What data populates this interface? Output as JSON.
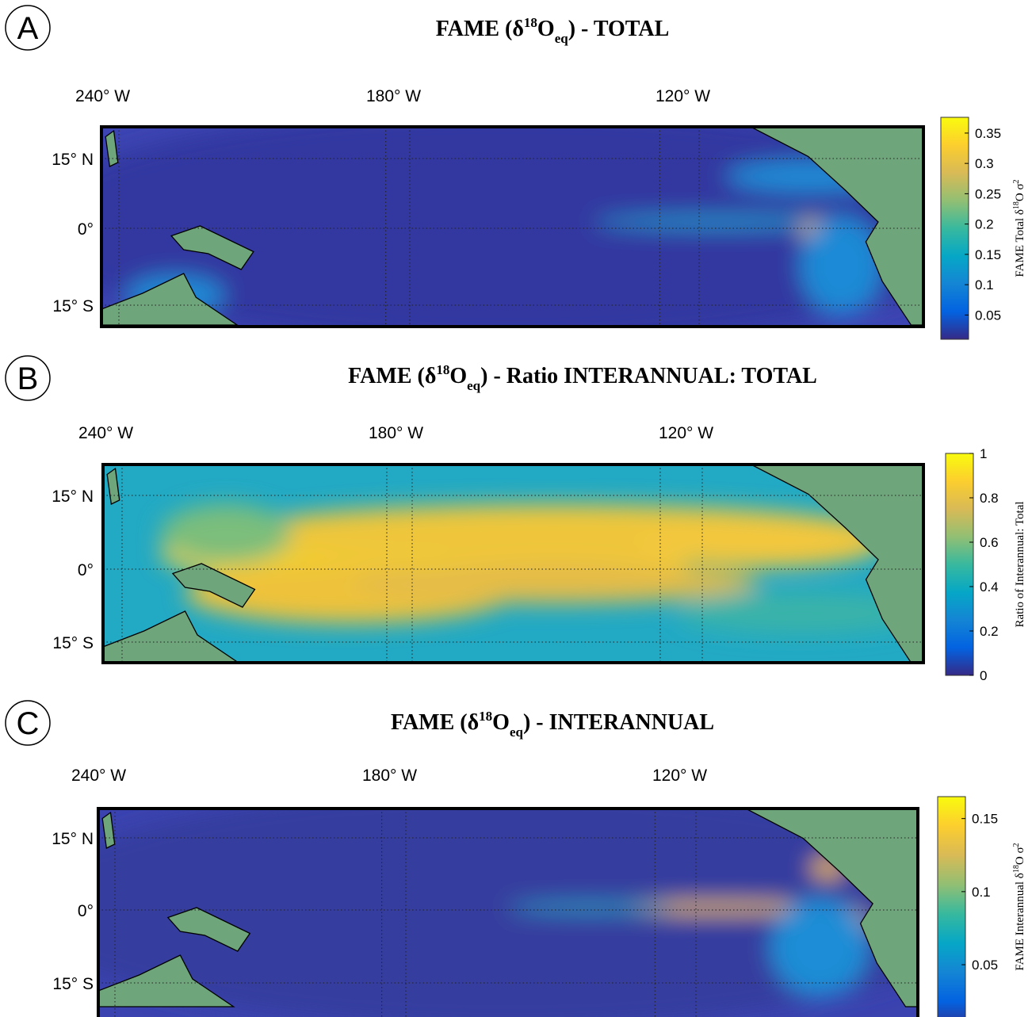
{
  "panels": [
    {
      "letter": "A",
      "title": {
        "prefix": "FAME (δ",
        "sup": "18",
        "mid": "O",
        "sub": "eq",
        "suffix": ") - TOTAL"
      },
      "lon_labels": [
        "240° W",
        "180° W",
        "120° W"
      ],
      "lat_labels": [
        "15° N",
        "0°",
        "15° S"
      ],
      "colorbar": {
        "lim": [
          0.01,
          0.376
        ],
        "ticks": [
          0.05,
          0.1,
          0.15,
          0.2,
          0.25,
          0.3,
          0.35
        ],
        "label": {
          "prefix": "FAME Total δ",
          "sup": "18",
          "mid": "O σ",
          "sup2": "2"
        }
      }
    },
    {
      "letter": "B",
      "title": {
        "prefix": "FAME (δ",
        "sup": "18",
        "mid": "O",
        "sub": "eq",
        "suffix": ") - Ratio INTERANNUAL: TOTAL"
      },
      "lon_labels": [
        "240° W",
        "180° W",
        "120° W"
      ],
      "lat_labels": [
        "15° N",
        "0°",
        "15° S"
      ],
      "colorbar": {
        "lim": [
          0,
          1
        ],
        "ticks": [
          0,
          0.2,
          0.4,
          0.6,
          0.8,
          1
        ],
        "label": {
          "prefix": "Ratio of Interannual: Total"
        }
      }
    },
    {
      "letter": "C",
      "title": {
        "prefix": "FAME (δ",
        "sup": "18",
        "mid": "O",
        "sub": "eq",
        "suffix": ") - INTERANNUAL"
      },
      "lon_labels": [
        "240° W",
        "180° W",
        "120° W"
      ],
      "lat_labels": [
        "15° N",
        "0°",
        "15° S"
      ],
      "colorbar": {
        "lim": [
          0.005,
          0.165
        ],
        "ticks": [
          0.05,
          0.1,
          0.15
        ],
        "label": {
          "prefix": "FAME Interannual δ",
          "sup": "18",
          "mid": "O σ",
          "sup2": "2"
        }
      }
    }
  ]
}
